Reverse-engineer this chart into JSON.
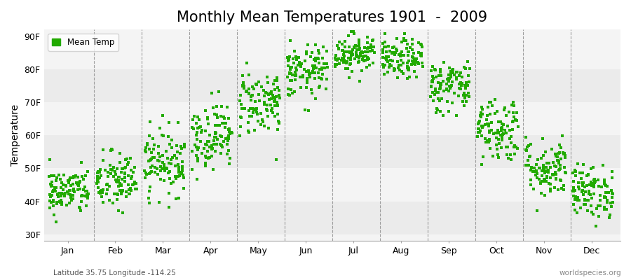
{
  "title": "Monthly Mean Temperatures 1901  -  2009",
  "ylabel": "Temperature",
  "xlabel_labels": [
    "Jan",
    "Feb",
    "Mar",
    "Apr",
    "May",
    "Jun",
    "Jul",
    "Aug",
    "Sep",
    "Oct",
    "Nov",
    "Dec"
  ],
  "bottom_left": "Latitude 35.75 Longitude -114.25",
  "bottom_right": "worldspecies.org",
  "legend_label": "Mean Temp",
  "ytick_labels": [
    "30F",
    "40F",
    "50F",
    "60F",
    "70F",
    "80F",
    "90F"
  ],
  "ytick_values": [
    30,
    40,
    50,
    60,
    70,
    80,
    90
  ],
  "ylim": [
    28,
    92
  ],
  "dot_color": "#22aa00",
  "fig_bg_color": "#ffffff",
  "plot_bg_color": "#f4f4f4",
  "band_colors": [
    "#ebebeb",
    "#f4f4f4"
  ],
  "n_years": 109,
  "monthly_means": [
    43,
    46,
    52,
    60,
    70,
    79,
    85,
    83,
    75,
    62,
    50,
    43
  ],
  "monthly_stds": [
    3.5,
    4.5,
    5.0,
    5.0,
    5.0,
    4.0,
    3.0,
    3.0,
    4.0,
    5.0,
    4.5,
    4.0
  ],
  "title_fontsize": 15,
  "axis_label_fontsize": 10,
  "tick_fontsize": 9,
  "figsize": [
    9.0,
    4.0
  ],
  "dpi": 100
}
